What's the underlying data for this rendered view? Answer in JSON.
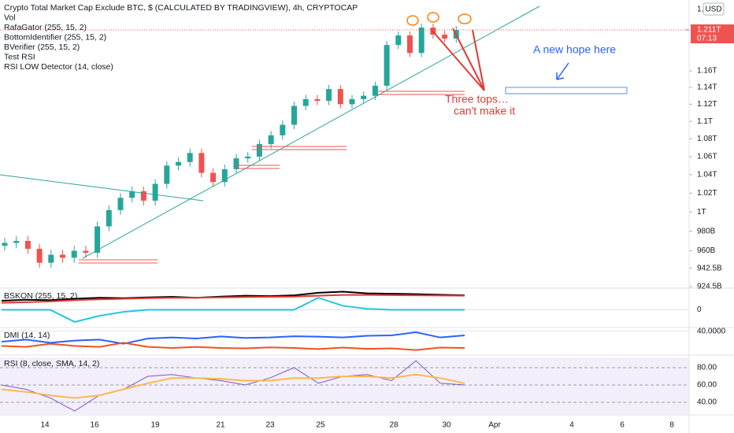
{
  "header": {
    "lines": [
      "Crypto Total Market Cap Exclude BTC, $ (CALCULATED BY TRADINGVIEW), 4h, CRYPTOCAP",
      "Vol",
      "RafaGator (255, 15, 2)",
      "BottomIdentifier (255, 15, 2)",
      "BVerifier (255, 15, 2)",
      "Test RSI",
      "RSI LOW Detector (14, close)"
    ],
    "currency": "USD",
    "axis_top_label": "1."
  },
  "price": {
    "log": true,
    "ylim": [
      0.923,
      1.2415
    ],
    "yticks": [
      {
        "value": 0.9245,
        "label": "924.5B"
      },
      {
        "value": 0.9425,
        "label": "942.5B"
      },
      {
        "value": 0.96,
        "label": "960B"
      },
      {
        "value": 0.98,
        "label": "980B"
      },
      {
        "value": 1,
        "label": "1T"
      },
      {
        "value": 1.02,
        "label": "1.02T"
      },
      {
        "value": 1.04,
        "label": "1.04T"
      },
      {
        "value": 1.06,
        "label": "1.06T"
      },
      {
        "value": 1.08,
        "label": "1.08T"
      },
      {
        "value": 1.1,
        "label": "1.1T"
      },
      {
        "value": 1.12,
        "label": "1.12T"
      },
      {
        "value": 1.14,
        "label": "1.14T"
      },
      {
        "value": 1.16,
        "label": "1.16T"
      }
    ],
    "last_price": {
      "value": 1.211,
      "label": "1.211T"
    },
    "countdown": "07:13",
    "up_color": "#26a69a",
    "down_color": "#ef5350",
    "open": [
      0.965,
      0.968,
      0.97,
      0.962,
      0.948,
      0.956,
      0.953,
      0.96,
      0.958,
      0.985,
      1.002,
      1.015,
      1.022,
      1.012,
      1.03,
      1.05,
      1.054,
      1.064,
      1.042,
      1.032,
      1.046,
      1.058,
      1.06,
      1.074,
      1.084,
      1.096,
      1.118,
      1.126,
      1.124,
      1.138,
      1.12,
      1.126,
      1.13,
      1.142,
      1.192,
      1.204,
      1.182,
      1.214,
      1.205,
      1.2
    ],
    "high": [
      0.973,
      0.975,
      0.975,
      0.967,
      0.961,
      0.961,
      0.965,
      0.965,
      0.99,
      1.007,
      1.02,
      1.027,
      1.027,
      1.035,
      1.055,
      1.059,
      1.069,
      1.069,
      1.047,
      1.051,
      1.063,
      1.065,
      1.079,
      1.089,
      1.101,
      1.123,
      1.131,
      1.131,
      1.143,
      1.143,
      1.131,
      1.135,
      1.147,
      1.197,
      1.209,
      1.209,
      1.219,
      1.219,
      1.21,
      1.216
    ],
    "low": [
      0.96,
      0.963,
      0.957,
      0.943,
      0.943,
      0.948,
      0.948,
      0.953,
      0.953,
      0.98,
      0.997,
      1.01,
      1.007,
      1.007,
      1.025,
      1.045,
      1.049,
      1.037,
      1.027,
      1.027,
      1.041,
      1.053,
      1.055,
      1.069,
      1.079,
      1.091,
      1.113,
      1.119,
      1.119,
      1.115,
      1.115,
      1.121,
      1.125,
      1.137,
      1.187,
      1.177,
      1.177,
      1.2,
      1.195,
      1.195
    ],
    "close": [
      0.968,
      0.97,
      0.962,
      0.948,
      0.956,
      0.953,
      0.96,
      0.958,
      0.985,
      1.002,
      1.015,
      1.022,
      1.012,
      1.03,
      1.05,
      1.054,
      1.064,
      1.042,
      1.032,
      1.046,
      1.058,
      1.06,
      1.074,
      1.084,
      1.096,
      1.118,
      1.126,
      1.124,
      1.138,
      1.12,
      1.126,
      1.13,
      1.142,
      1.192,
      1.204,
      1.182,
      1.214,
      1.205,
      1.2,
      1.211
    ]
  },
  "annotations": {
    "hope": "A new hope here",
    "tops": [
      "Three tops…",
      "can't make it"
    ]
  },
  "panes": [
    {
      "title": "BSKON (255, 15, 2)",
      "ylim": [
        -0.8,
        1
      ],
      "yticks": [
        0
      ],
      "series": [
        {
          "color": "#000000",
          "values": [
            0.45,
            0.5,
            0.48,
            0.55,
            0.6,
            0.58,
            0.62,
            0.65,
            0.6,
            0.66,
            0.7,
            0.68,
            0.72,
            0.85,
            0.9,
            0.82,
            0.8,
            0.78,
            0.75,
            0.72
          ]
        },
        {
          "color": "#e53935",
          "values": [
            0.35,
            0.38,
            0.42,
            0.48,
            0.52,
            0.55,
            0.58,
            0.6,
            0.6,
            0.62,
            0.64,
            0.65,
            0.66,
            0.7,
            0.74,
            0.74,
            0.73,
            0.72,
            0.71,
            0.7
          ]
        },
        {
          "color": "#26c6da",
          "values": [
            0,
            0,
            0,
            -0.6,
            -0.3,
            -0.1,
            0,
            0,
            0,
            0,
            0,
            0,
            0,
            0.6,
            0.2,
            0.05,
            0,
            0,
            0,
            0
          ]
        }
      ]
    },
    {
      "title": "DMI (14, 14)",
      "ylim": [
        29,
        41
      ],
      "yticks": [
        {
          "value": 40,
          "label": "40.0000"
        }
      ],
      "series": [
        {
          "color": "#2962ff",
          "values": [
            35,
            36,
            34.5,
            35.5,
            36,
            34,
            36.5,
            37,
            36.5,
            37.5,
            36.8,
            37,
            37.6,
            37.4,
            37,
            37.8,
            38,
            39.5,
            37,
            38
          ]
        },
        {
          "color": "#f4511e",
          "values": [
            33,
            32.5,
            34,
            33,
            32.5,
            34.5,
            32.5,
            32,
            32.5,
            32,
            31.8,
            32.3,
            32,
            31.5,
            32.2,
            31.6,
            31.8,
            31,
            32.2,
            32
          ]
        }
      ]
    },
    {
      "title": "RSI (8, close, SMA, 14, 2)",
      "ylim": [
        26.4,
        91.8
      ],
      "yticks": [
        {
          "value": 80,
          "label": "80.00"
        },
        {
          "value": 60,
          "label": "60.00"
        },
        {
          "value": 40,
          "label": "40.00"
        }
      ],
      "series": [
        {
          "color": "#7e57c2",
          "values": [
            60,
            55,
            45,
            30,
            48,
            55,
            70,
            72,
            68,
            65,
            60,
            68,
            80,
            62,
            70,
            72,
            65,
            88,
            62,
            60
          ]
        },
        {
          "color": "#ffb74d",
          "values": [
            55,
            52,
            48,
            45,
            48,
            55,
            62,
            68,
            68,
            67,
            65,
            65,
            68,
            68,
            70,
            70,
            68,
            72,
            68,
            62
          ]
        }
      ]
    }
  ],
  "x_labels": [
    "14",
    "16",
    "19",
    "21",
    "23",
    "25",
    "28",
    "30",
    "Apr",
    "4",
    "6",
    "8"
  ]
}
